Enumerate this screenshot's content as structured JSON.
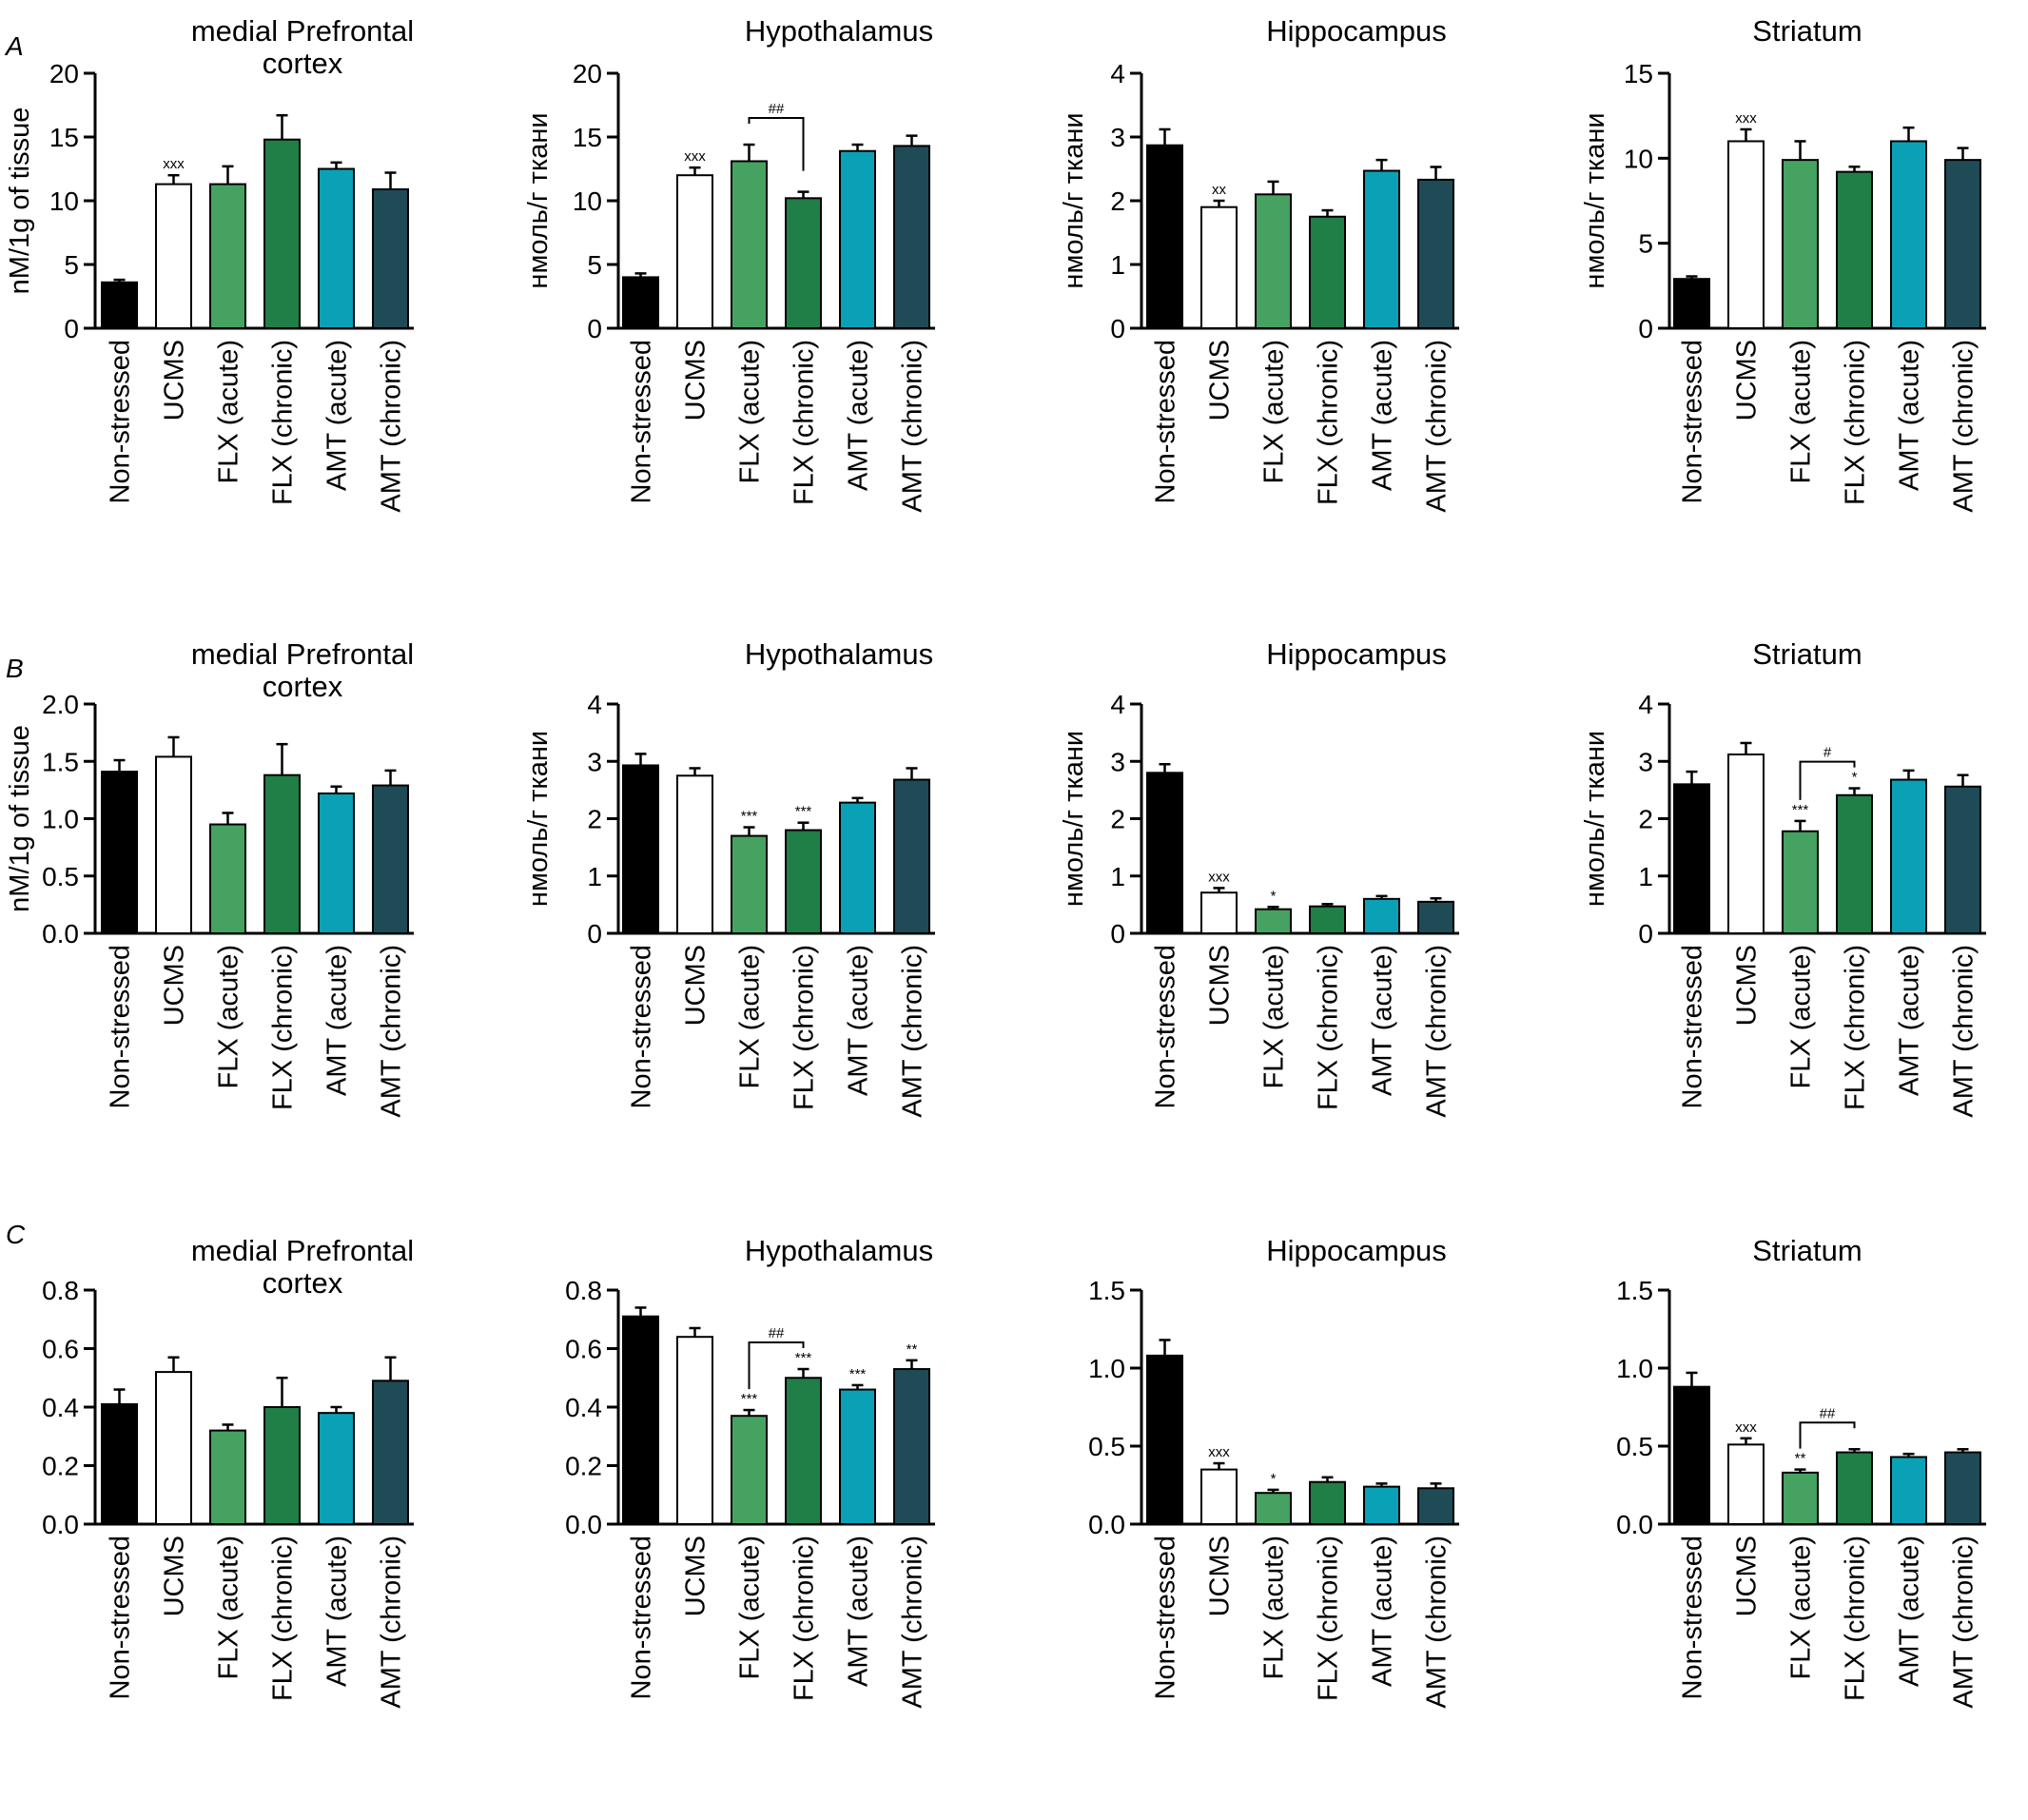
{
  "colors": {
    "Non-stressed": "#000000",
    "UCMS": "#ffffff",
    "FLX (acute)": "#45a261",
    "FLX (chronic)": "#207e47",
    "AMT (acute)": "#0aa1b6",
    "AMT (chronic)": "#1f4b57"
  },
  "chart_data": [
    {
      "type": "bar",
      "row": "A",
      "title": "medial Prefrontal cortex",
      "title_lines": [
        "medial Prefrontal",
        "cortex"
      ],
      "ylabel": "nM/1g of tissue",
      "ylim": [
        0,
        20
      ],
      "yticks": [
        "0",
        "5",
        "10",
        "15",
        "20"
      ],
      "categories": [
        "Non-stressed",
        "UCMS",
        "FLX (acute)",
        "FLX (chronic)",
        "AMT (acute)",
        "AMT (chronic)"
      ],
      "values": [
        3.6,
        11.3,
        11.3,
        14.8,
        12.5,
        10.9
      ],
      "errors": [
        0.2,
        0.7,
        1.4,
        1.9,
        0.5,
        1.3
      ],
      "annotations": [
        "",
        "xxx",
        "",
        "",
        "",
        ""
      ],
      "brackets": []
    },
    {
      "type": "bar",
      "row": "A",
      "title": "Hypothalamus",
      "title_lines": [
        "Hypothalamus"
      ],
      "ylabel": "нмоль/г ткани",
      "ylim": [
        0,
        20
      ],
      "yticks": [
        "0",
        "5",
        "10",
        "15",
        "20"
      ],
      "categories": [
        "Non-stressed",
        "UCMS",
        "FLX (acute)",
        "FLX (chronic)",
        "AMT (acute)",
        "AMT (chronic)"
      ],
      "values": [
        4.0,
        12.0,
        13.1,
        10.2,
        13.9,
        14.3
      ],
      "errors": [
        0.3,
        0.6,
        1.3,
        0.5,
        0.5,
        0.8
      ],
      "annotations": [
        "",
        "xxx",
        "",
        "",
        "",
        ""
      ],
      "brackets": [
        {
          "from": 2,
          "to": 3,
          "label": "##"
        }
      ]
    },
    {
      "type": "bar",
      "row": "A",
      "title": "Hippocampus",
      "title_lines": [
        "Hippocampus"
      ],
      "ylabel": "нмоль/г ткани",
      "ylim": [
        0,
        4
      ],
      "yticks": [
        "0",
        "1",
        "2",
        "3",
        "4"
      ],
      "categories": [
        "Non-stressed",
        "UCMS",
        "FLX (acute)",
        "FLX (chronic)",
        "AMT (acute)",
        "AMT (chronic)"
      ],
      "values": [
        2.87,
        1.9,
        2.1,
        1.75,
        2.47,
        2.33
      ],
      "errors": [
        0.25,
        0.1,
        0.2,
        0.1,
        0.17,
        0.2
      ],
      "annotations": [
        "",
        "xx",
        "",
        "",
        "",
        ""
      ],
      "brackets": []
    },
    {
      "type": "bar",
      "row": "A",
      "title": "Striatum",
      "title_lines": [
        "Striatum"
      ],
      "ylabel": "нмоль/г ткани",
      "ylim": [
        0,
        15
      ],
      "yticks": [
        "0",
        "5",
        "10",
        "15"
      ],
      "categories": [
        "Non-stressed",
        "UCMS",
        "FLX (acute)",
        "FLX (chronic)",
        "AMT (acute)",
        "AMT (chronic)"
      ],
      "values": [
        2.9,
        11.0,
        9.9,
        9.2,
        11.0,
        9.9
      ],
      "errors": [
        0.15,
        0.7,
        1.1,
        0.3,
        0.8,
        0.7
      ],
      "annotations": [
        "",
        "xxx",
        "",
        "",
        "",
        ""
      ],
      "brackets": []
    },
    {
      "type": "bar",
      "row": "B",
      "title": "medial Prefrontal cortex",
      "title_lines": [
        "medial Prefrontal",
        "cortex"
      ],
      "ylabel": "nM/1g of tissue",
      "ylim": [
        0,
        2
      ],
      "yticks": [
        "0.0",
        "0.5",
        "1.0",
        "1.5",
        "2.0"
      ],
      "categories": [
        "Non-stressed",
        "UCMS",
        "FLX (acute)",
        "FLX (chronic)",
        "AMT (acute)",
        "AMT (chronic)"
      ],
      "values": [
        1.41,
        1.54,
        0.95,
        1.38,
        1.22,
        1.29
      ],
      "errors": [
        0.1,
        0.17,
        0.1,
        0.27,
        0.06,
        0.13
      ],
      "annotations": [
        "",
        "",
        "",
        "",
        "",
        ""
      ],
      "brackets": []
    },
    {
      "type": "bar",
      "row": "B",
      "title": "Hypothalamus",
      "title_lines": [
        "Hypothalamus"
      ],
      "ylabel": "нмоль/г ткани",
      "ylim": [
        0,
        4
      ],
      "yticks": [
        "0",
        "1",
        "2",
        "3",
        "4"
      ],
      "categories": [
        "Non-stressed",
        "UCMS",
        "FLX (acute)",
        "FLX (chronic)",
        "AMT (acute)",
        "AMT (chronic)"
      ],
      "values": [
        2.93,
        2.75,
        1.7,
        1.8,
        2.28,
        2.68
      ],
      "errors": [
        0.2,
        0.13,
        0.15,
        0.13,
        0.08,
        0.2
      ],
      "annotations": [
        "",
        "",
        "***",
        "***",
        "",
        ""
      ],
      "brackets": []
    },
    {
      "type": "bar",
      "row": "B",
      "title": "Hippocampus",
      "title_lines": [
        "Hippocampus"
      ],
      "ylabel": "нмоль/г ткани",
      "ylim": [
        0,
        4
      ],
      "yticks": [
        "0",
        "1",
        "2",
        "3",
        "4"
      ],
      "categories": [
        "Non-stressed",
        "UCMS",
        "FLX (acute)",
        "FLX (chronic)",
        "AMT (acute)",
        "AMT (chronic)"
      ],
      "values": [
        2.8,
        0.71,
        0.42,
        0.47,
        0.6,
        0.55
      ],
      "errors": [
        0.15,
        0.08,
        0.04,
        0.04,
        0.05,
        0.06
      ],
      "annotations": [
        "",
        "xxx",
        "*",
        "",
        "",
        ""
      ],
      "brackets": []
    },
    {
      "type": "bar",
      "row": "B",
      "title": "Striatum",
      "title_lines": [
        "Striatum"
      ],
      "ylabel": "нмоль/г ткани",
      "ylim": [
        0,
        4
      ],
      "yticks": [
        "0",
        "1",
        "2",
        "3",
        "4"
      ],
      "categories": [
        "Non-stressed",
        "UCMS",
        "FLX (acute)",
        "FLX (chronic)",
        "AMT (acute)",
        "AMT (chronic)"
      ],
      "values": [
        2.6,
        3.12,
        1.78,
        2.41,
        2.68,
        2.56
      ],
      "errors": [
        0.22,
        0.2,
        0.18,
        0.12,
        0.16,
        0.2
      ],
      "annotations": [
        "",
        "",
        "***",
        "*",
        "",
        ""
      ],
      "brackets": [
        {
          "from": 2,
          "to": 3,
          "label": "#"
        }
      ]
    },
    {
      "type": "bar",
      "row": "C",
      "title": "medial Prefrontal cortex",
      "title_lines": [
        "medial Prefrontal",
        "cortex"
      ],
      "ylabel": "",
      "ylim": [
        0,
        0.8
      ],
      "yticks": [
        "0.0",
        "0.2",
        "0.4",
        "0.6",
        "0.8"
      ],
      "categories": [
        "Non-stressed",
        "UCMS",
        "FLX (acute)",
        "FLX (chronic)",
        "AMT (acute)",
        "AMT (chronic)"
      ],
      "values": [
        0.41,
        0.52,
        0.32,
        0.4,
        0.38,
        0.49
      ],
      "errors": [
        0.05,
        0.05,
        0.02,
        0.1,
        0.02,
        0.08
      ],
      "annotations": [
        "",
        "",
        "",
        "",
        "",
        ""
      ],
      "brackets": []
    },
    {
      "type": "bar",
      "row": "C",
      "title": "Hypothalamus",
      "title_lines": [
        "Hypothalamus"
      ],
      "ylabel": "",
      "ylim": [
        0,
        0.8
      ],
      "yticks": [
        "0.0",
        "0.2",
        "0.4",
        "0.6",
        "0.8"
      ],
      "categories": [
        "Non-stressed",
        "UCMS",
        "FLX (acute)",
        "FLX (chronic)",
        "AMT (acute)",
        "AMT (chronic)"
      ],
      "values": [
        0.71,
        0.64,
        0.37,
        0.5,
        0.46,
        0.53
      ],
      "errors": [
        0.03,
        0.03,
        0.02,
        0.03,
        0.015,
        0.03
      ],
      "annotations": [
        "",
        "",
        "***",
        "***",
        "***",
        "**"
      ],
      "brackets": [
        {
          "from": 2,
          "to": 3,
          "label": "##"
        }
      ]
    },
    {
      "type": "bar",
      "row": "C",
      "title": "Hippocampus",
      "title_lines": [
        "Hippocampus"
      ],
      "ylabel": "",
      "ylim": [
        0,
        1.5
      ],
      "yticks": [
        "0.0",
        "0.5",
        "1.0",
        "1.5"
      ],
      "categories": [
        "Non-stressed",
        "UCMS",
        "FLX (acute)",
        "FLX (chronic)",
        "AMT (acute)",
        "AMT (chronic)"
      ],
      "values": [
        1.08,
        0.35,
        0.2,
        0.27,
        0.24,
        0.23
      ],
      "errors": [
        0.1,
        0.04,
        0.02,
        0.03,
        0.02,
        0.03
      ],
      "annotations": [
        "",
        "xxx",
        "*",
        "",
        "",
        ""
      ],
      "brackets": []
    },
    {
      "type": "bar",
      "row": "C",
      "title": "Striatum",
      "title_lines": [
        "Striatum"
      ],
      "ylabel": "",
      "ylim": [
        0,
        1.5
      ],
      "yticks": [
        "0.0",
        "0.5",
        "1.0",
        "1.5"
      ],
      "categories": [
        "Non-stressed",
        "UCMS",
        "FLX (acute)",
        "FLX (chronic)",
        "AMT (acute)",
        "AMT (chronic)"
      ],
      "values": [
        0.88,
        0.51,
        0.33,
        0.46,
        0.43,
        0.46
      ],
      "errors": [
        0.09,
        0.04,
        0.02,
        0.02,
        0.02,
        0.02
      ],
      "annotations": [
        "",
        "xxx",
        "**",
        "",
        "",
        ""
      ],
      "brackets": [
        {
          "from": 2,
          "to": 3,
          "label": "##"
        }
      ]
    }
  ]
}
